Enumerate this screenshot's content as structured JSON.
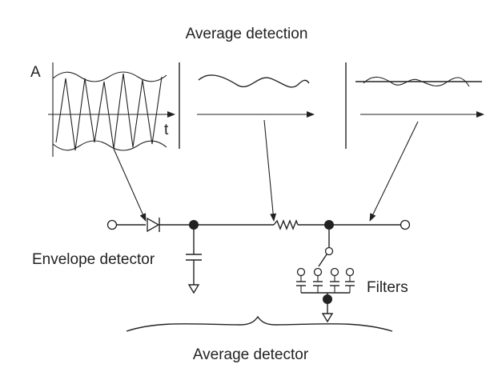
{
  "title": "Average detection",
  "labels": {
    "amplitude_axis": "A",
    "time_axis": "t",
    "envelope_detector": "Envelope detector",
    "filters": "Filters",
    "average_detector": "Average detector"
  },
  "icons": [
    "diode-symbol",
    "capacitor-symbol",
    "resistor-symbol",
    "ground-symbol",
    "switch-symbol",
    "brace-symbol",
    "arrow-icon"
  ]
}
